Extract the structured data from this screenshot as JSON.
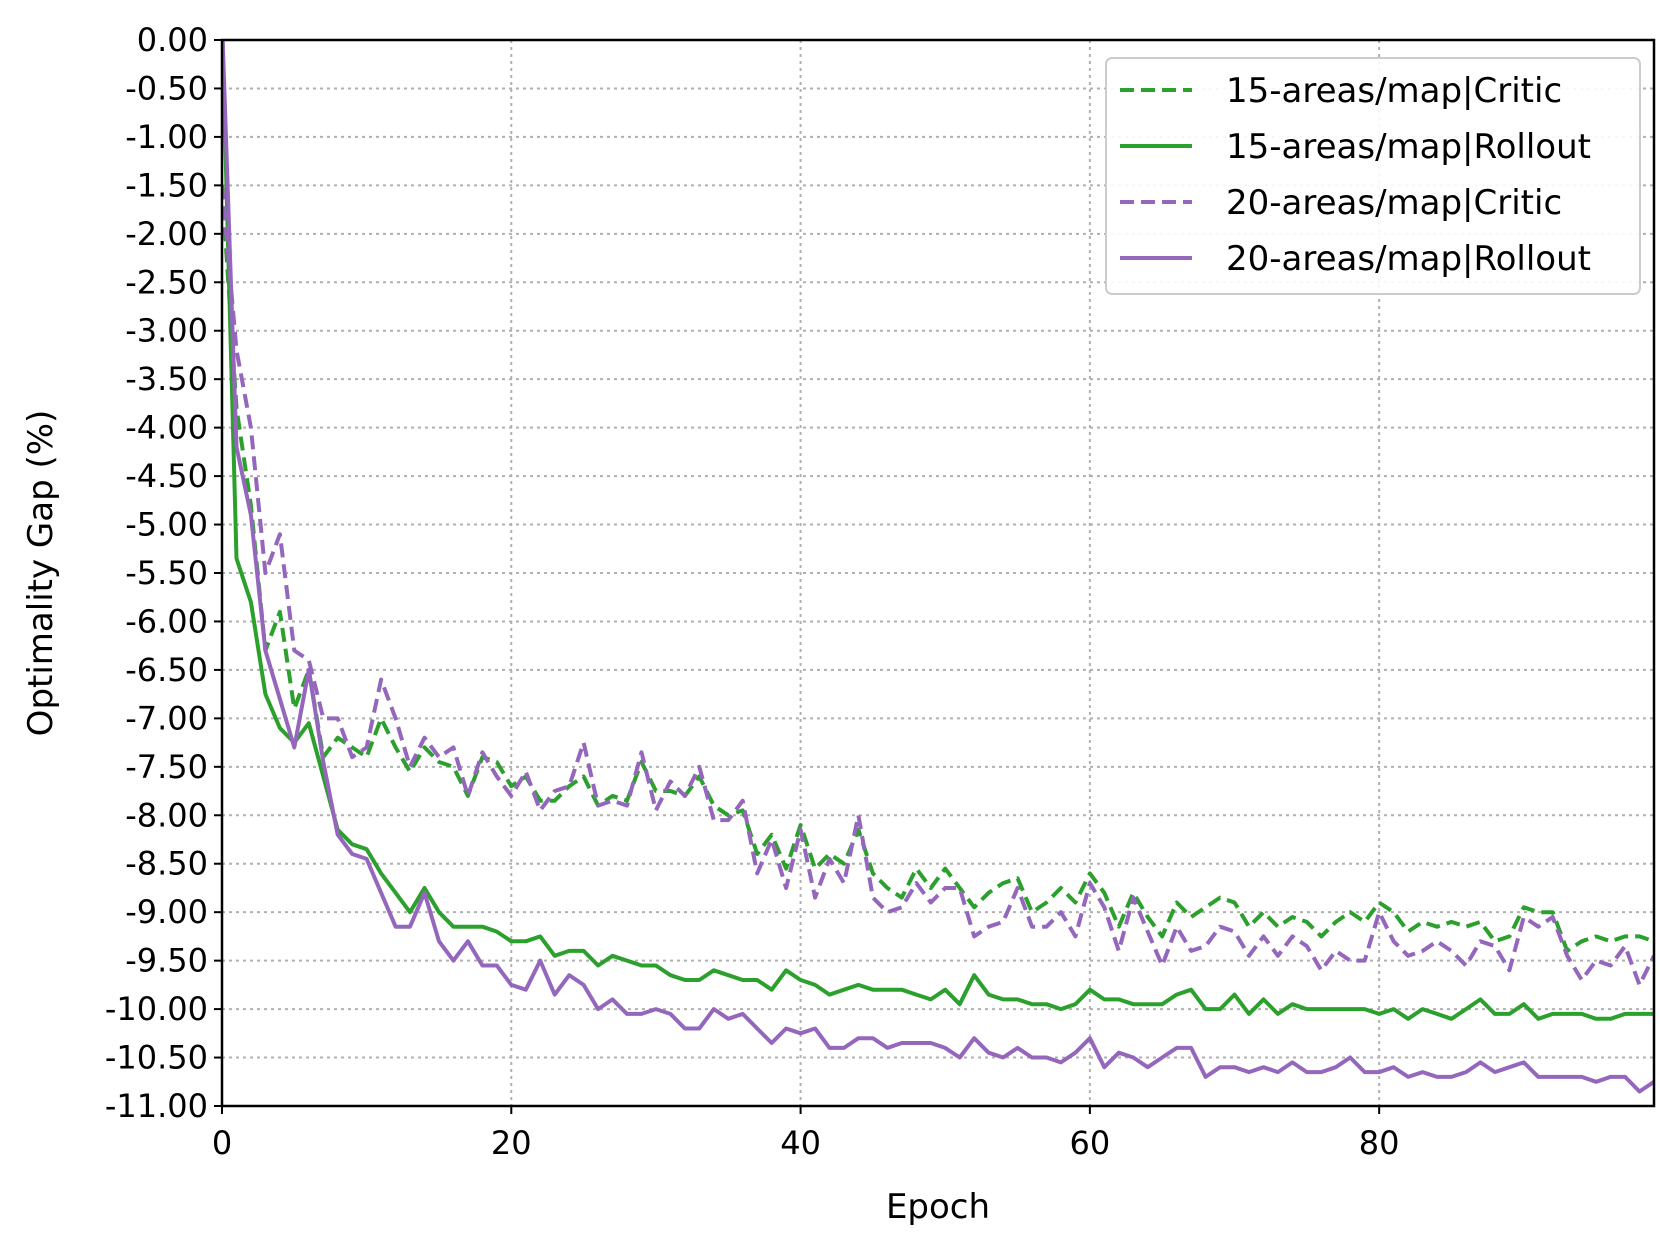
{
  "chart_data": {
    "type": "line",
    "title": "",
    "xlabel": "Epoch",
    "ylabel": "Optimality Gap (%)",
    "xlim": [
      0,
      99
    ],
    "ylim": [
      -11,
      0
    ],
    "xticks": [
      0,
      20,
      40,
      60,
      80
    ],
    "xtick_labels": [
      "0",
      "20",
      "40",
      "60",
      "80"
    ],
    "yticks": [
      0,
      -0.5,
      -1,
      -1.5,
      -2,
      -2.5,
      -3,
      -3.5,
      -4,
      -4.5,
      -5,
      -5.5,
      -6,
      -6.5,
      -7,
      -7.5,
      -8,
      -8.5,
      -9,
      -9.5,
      -10,
      -10.5,
      -11
    ],
    "ytick_labels": [
      "0.00",
      "-0.50",
      "-1.00",
      "-1.50",
      "-2.00",
      "-2.50",
      "-3.00",
      "-3.50",
      "-4.00",
      "-4.50",
      "-5.00",
      "-5.50",
      "-6.00",
      "-6.50",
      "-7.00",
      "-7.50",
      "-8.00",
      "-8.50",
      "-9.00",
      "-9.50",
      "-10.00",
      "-10.50",
      "-11.00"
    ],
    "grid": true,
    "legend_position": "top-right",
    "x": [
      0,
      1,
      2,
      3,
      4,
      5,
      6,
      7,
      8,
      9,
      10,
      11,
      12,
      13,
      14,
      15,
      16,
      17,
      18,
      19,
      20,
      21,
      22,
      23,
      24,
      25,
      26,
      27,
      28,
      29,
      30,
      31,
      32,
      33,
      34,
      35,
      36,
      37,
      38,
      39,
      40,
      41,
      42,
      43,
      44,
      45,
      46,
      47,
      48,
      49,
      50,
      51,
      52,
      53,
      54,
      55,
      56,
      57,
      58,
      59,
      60,
      61,
      62,
      63,
      64,
      65,
      66,
      67,
      68,
      69,
      70,
      71,
      72,
      73,
      74,
      75,
      76,
      77,
      78,
      79,
      80,
      81,
      82,
      83,
      84,
      85,
      86,
      87,
      88,
      89,
      90,
      91,
      92,
      93,
      94,
      95,
      96,
      97,
      98,
      99
    ],
    "series": [
      {
        "name": "15-areas/map|Critic",
        "color": "#2ca02c",
        "dash": "dashed",
        "values": [
          -1.5,
          -3.8,
          -4.8,
          -6.3,
          -5.9,
          -6.9,
          -6.5,
          -7.4,
          -7.2,
          -7.3,
          -7.4,
          -7.0,
          -7.3,
          -7.55,
          -7.3,
          -7.45,
          -7.5,
          -7.8,
          -7.4,
          -7.45,
          -7.7,
          -7.6,
          -7.85,
          -7.85,
          -7.7,
          -7.6,
          -7.9,
          -7.8,
          -7.85,
          -7.45,
          -7.75,
          -7.75,
          -7.8,
          -7.6,
          -7.9,
          -8.0,
          -7.95,
          -8.4,
          -8.2,
          -8.55,
          -8.1,
          -8.55,
          -8.4,
          -8.5,
          -8.15,
          -8.6,
          -8.75,
          -8.85,
          -8.55,
          -8.75,
          -8.55,
          -8.75,
          -8.95,
          -8.8,
          -8.7,
          -8.65,
          -9.0,
          -8.9,
          -8.75,
          -8.9,
          -8.6,
          -8.8,
          -9.15,
          -8.8,
          -9.05,
          -9.25,
          -8.9,
          -9.05,
          -8.95,
          -8.85,
          -8.9,
          -9.15,
          -9.0,
          -9.15,
          -9.05,
          -9.1,
          -9.25,
          -9.1,
          -9.0,
          -9.1,
          -8.9,
          -9.0,
          -9.2,
          -9.1,
          -9.15,
          -9.1,
          -9.15,
          -9.1,
          -9.3,
          -9.25,
          -8.95,
          -9.0,
          -9.0,
          -9.4,
          -9.3,
          -9.25,
          -9.3,
          -9.25,
          -9.25,
          -9.3
        ]
      },
      {
        "name": "15-areas/map|Rollout",
        "color": "#2ca02c",
        "dash": "solid",
        "values": [
          0.2,
          -5.35,
          -5.8,
          -6.75,
          -7.1,
          -7.25,
          -7.05,
          -7.6,
          -8.15,
          -8.3,
          -8.35,
          -8.6,
          -8.8,
          -9.0,
          -8.75,
          -9.0,
          -9.15,
          -9.15,
          -9.15,
          -9.2,
          -9.3,
          -9.3,
          -9.25,
          -9.45,
          -9.4,
          -9.4,
          -9.55,
          -9.45,
          -9.5,
          -9.55,
          -9.55,
          -9.65,
          -9.7,
          -9.7,
          -9.6,
          -9.65,
          -9.7,
          -9.7,
          -9.8,
          -9.6,
          -9.7,
          -9.75,
          -9.85,
          -9.8,
          -9.75,
          -9.8,
          -9.8,
          -9.8,
          -9.85,
          -9.9,
          -9.8,
          -9.95,
          -9.65,
          -9.85,
          -9.9,
          -9.9,
          -9.95,
          -9.95,
          -10.0,
          -9.95,
          -9.8,
          -9.9,
          -9.9,
          -9.95,
          -9.95,
          -9.95,
          -9.85,
          -9.8,
          -10.0,
          -10.0,
          -9.85,
          -10.05,
          -9.9,
          -10.05,
          -9.95,
          -10.0,
          -10.0,
          -10.0,
          -10.0,
          -10.0,
          -10.05,
          -10.0,
          -10.1,
          -10.0,
          -10.05,
          -10.1,
          -10.0,
          -9.9,
          -10.05,
          -10.05,
          -9.95,
          -10.1,
          -10.05,
          -10.05,
          -10.05,
          -10.1,
          -10.1,
          -10.05,
          -10.05,
          -10.05
        ]
      },
      {
        "name": "20-areas/map|Critic",
        "color": "#9467bd",
        "dash": "dashed",
        "values": [
          -1.5,
          -3.2,
          -4.0,
          -5.5,
          -5.1,
          -6.3,
          -6.4,
          -7.0,
          -7.0,
          -7.4,
          -7.3,
          -6.6,
          -7.0,
          -7.5,
          -7.2,
          -7.4,
          -7.3,
          -7.8,
          -7.35,
          -7.6,
          -7.8,
          -7.55,
          -7.95,
          -7.75,
          -7.7,
          -7.25,
          -7.9,
          -7.85,
          -7.9,
          -7.35,
          -7.95,
          -7.65,
          -7.8,
          -7.5,
          -8.05,
          -8.05,
          -7.85,
          -8.6,
          -8.25,
          -8.75,
          -8.15,
          -8.85,
          -8.45,
          -8.7,
          -8.0,
          -8.85,
          -9.0,
          -8.95,
          -8.7,
          -8.9,
          -8.75,
          -8.75,
          -9.25,
          -9.15,
          -9.1,
          -8.75,
          -9.15,
          -9.15,
          -9.0,
          -9.25,
          -8.7,
          -8.95,
          -9.4,
          -8.85,
          -9.2,
          -9.55,
          -9.15,
          -9.4,
          -9.35,
          -9.15,
          -9.2,
          -9.45,
          -9.25,
          -9.45,
          -9.25,
          -9.35,
          -9.6,
          -9.4,
          -9.5,
          -9.5,
          -9.0,
          -9.3,
          -9.45,
          -9.4,
          -9.3,
          -9.4,
          -9.55,
          -9.3,
          -9.35,
          -9.6,
          -9.05,
          -9.15,
          -9.05,
          -9.45,
          -9.7,
          -9.5,
          -9.55,
          -9.35,
          -9.75,
          -9.45
        ]
      },
      {
        "name": "20-areas/map|Rollout",
        "color": "#9467bd",
        "dash": "solid",
        "values": [
          0.2,
          -4.2,
          -4.9,
          -6.3,
          -6.8,
          -7.3,
          -6.5,
          -7.45,
          -8.2,
          -8.4,
          -8.45,
          -8.8,
          -9.15,
          -9.15,
          -8.8,
          -9.3,
          -9.5,
          -9.3,
          -9.55,
          -9.55,
          -9.75,
          -9.8,
          -9.5,
          -9.85,
          -9.65,
          -9.75,
          -10.0,
          -9.9,
          -10.05,
          -10.05,
          -10.0,
          -10.05,
          -10.2,
          -10.2,
          -10.0,
          -10.1,
          -10.05,
          -10.2,
          -10.35,
          -10.2,
          -10.25,
          -10.2,
          -10.4,
          -10.4,
          -10.3,
          -10.3,
          -10.4,
          -10.35,
          -10.35,
          -10.35,
          -10.4,
          -10.5,
          -10.3,
          -10.45,
          -10.5,
          -10.4,
          -10.5,
          -10.5,
          -10.55,
          -10.45,
          -10.3,
          -10.6,
          -10.45,
          -10.5,
          -10.6,
          -10.5,
          -10.4,
          -10.4,
          -10.7,
          -10.6,
          -10.6,
          -10.65,
          -10.6,
          -10.65,
          -10.55,
          -10.65,
          -10.65,
          -10.6,
          -10.5,
          -10.65,
          -10.65,
          -10.6,
          -10.7,
          -10.65,
          -10.7,
          -10.7,
          -10.65,
          -10.55,
          -10.65,
          -10.6,
          -10.55,
          -10.7,
          -10.7,
          -10.7,
          -10.7,
          -10.75,
          -10.7,
          -10.7,
          -10.85,
          -10.75
        ]
      }
    ]
  }
}
